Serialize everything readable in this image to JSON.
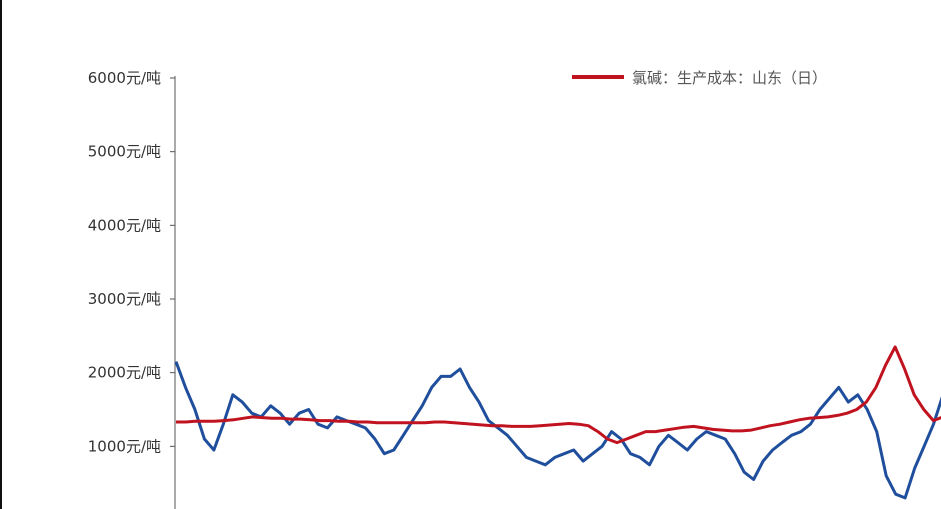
{
  "chart_data": {
    "type": "line",
    "y_ticks": [
      "6000元/吨",
      "5000元/吨",
      "4000元/吨",
      "3000元/吨",
      "2000元/吨",
      "1000元/吨"
    ],
    "y_tick_values": [
      6000,
      5000,
      4000,
      3000,
      2000,
      1000
    ],
    "ylim": [
      0,
      6000
    ],
    "grid": false,
    "legend_position": "top-right",
    "series": [
      {
        "name": "氯碱：生产成本：山东（日）",
        "color": "#c0131f",
        "values": [
          1330,
          1330,
          1340,
          1340,
          1340,
          1350,
          1360,
          1380,
          1400,
          1390,
          1380,
          1380,
          1370,
          1370,
          1360,
          1350,
          1350,
          1340,
          1340,
          1330,
          1330,
          1320,
          1320,
          1320,
          1320,
          1320,
          1320,
          1330,
          1330,
          1320,
          1310,
          1300,
          1290,
          1280,
          1280,
          1270,
          1270,
          1270,
          1280,
          1290,
          1300,
          1310,
          1300,
          1280,
          1200,
          1100,
          1050,
          1100,
          1150,
          1200,
          1200,
          1220,
          1240,
          1260,
          1270,
          1250,
          1230,
          1220,
          1210,
          1210,
          1220,
          1250,
          1280,
          1300,
          1330,
          1360,
          1380,
          1390,
          1400,
          1420,
          1450,
          1500,
          1600,
          1800,
          2100,
          2350,
          2050,
          1700,
          1500,
          1350,
          1400
        ]
      },
      {
        "name": "",
        "color": "#1f4e9c",
        "values": [
          2150,
          1800,
          1500,
          1100,
          950,
          1300,
          1700,
          1600,
          1450,
          1400,
          1550,
          1450,
          1300,
          1450,
          1500,
          1300,
          1250,
          1400,
          1350,
          1300,
          1250,
          1100,
          900,
          950,
          1150,
          1350,
          1550,
          1800,
          1950,
          1950,
          2050,
          1800,
          1600,
          1350,
          1250,
          1150,
          1000,
          850,
          800,
          750,
          850,
          900,
          950,
          800,
          900,
          1000,
          1200,
          1100,
          900,
          850,
          750,
          1000,
          1150,
          1050,
          950,
          1100,
          1200,
          1150,
          1100,
          900,
          650,
          550,
          800,
          950,
          1050,
          1150,
          1200,
          1300,
          1500,
          1650,
          1800,
          1600,
          1700,
          1500,
          1200,
          600,
          350,
          300,
          700,
          1000,
          1300,
          1700
        ]
      }
    ]
  }
}
